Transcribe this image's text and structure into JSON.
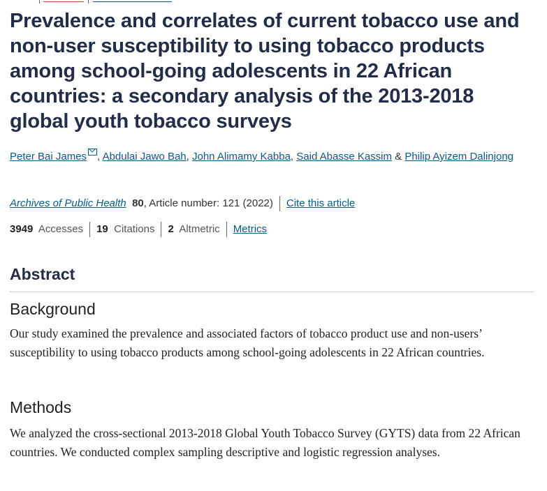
{
  "article": {
    "title": "Prevalence and correlates of current tobacco use and non-user susceptibility to using tobacco products among school-going adolescents in 22 African countries: a secondary analysis of the 2013-2018 global youth tobacco surveys",
    "authors": [
      "Peter Bai James",
      "Abdulai Jawo Bah",
      "John Alimamy Kabba",
      "Said Abasse Kassim",
      "Philip Ayizem Dalinjong"
    ],
    "journal": "Archives of Public Health",
    "volume": "80",
    "article_info": ", Article number: 121 (2022)",
    "cite_label": "Cite this article",
    "metrics": {
      "accesses": "3949",
      "accesses_label": "Accesses",
      "citations": "19",
      "citations_label": "Citations",
      "altmetric": "2",
      "altmetric_label": "Altmetric",
      "metrics_link": "Metrics"
    }
  },
  "abstract": {
    "heading": "Abstract",
    "sections": [
      {
        "heading": "Background",
        "text": "Our study examined the prevalence and associated factors of tobacco product use and non-users’ susceptibility to using tobacco products among school-going adolescents in 22 African countries."
      },
      {
        "heading": "Methods",
        "text": "We analyzed the cross-sectional 2013-2018 Global Youth Tobacco Survey (GYTS) data from 22 African countries. We conducted complex sampling descriptive and logistic regression analyses."
      }
    ]
  },
  "colors": {
    "link": "#025e8d",
    "title": "#222d4a"
  },
  "icons": [
    "envelope-icon"
  ]
}
